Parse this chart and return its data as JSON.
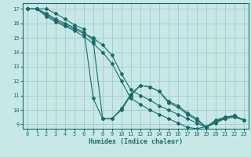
{
  "xlabel": "Humidex (Indice chaleur)",
  "bg_color": "#c8e8e8",
  "line_color": "#1a6b6b",
  "grid_color": "#a8cccc",
  "xlim": [
    -0.5,
    23.5
  ],
  "ylim": [
    8.7,
    17.4
  ],
  "yticks": [
    9,
    10,
    11,
    12,
    13,
    14,
    15,
    16,
    17
  ],
  "xticks": [
    0,
    1,
    2,
    3,
    4,
    5,
    6,
    7,
    8,
    9,
    10,
    11,
    12,
    13,
    14,
    15,
    16,
    17,
    18,
    19,
    20,
    21,
    22,
    23
  ],
  "lines": [
    {
      "x": [
        0,
        1,
        2,
        3,
        4,
        5,
        6,
        7,
        8,
        9,
        10,
        11,
        12,
        13,
        14,
        15,
        16,
        17,
        18,
        19,
        20,
        21,
        22,
        23
      ],
      "y": [
        17,
        17,
        17,
        16.7,
        16.3,
        15.9,
        15.6,
        10.8,
        9.4,
        9.4,
        10.0,
        11.0,
        11.7,
        11.6,
        11.3,
        10.5,
        10.2,
        9.7,
        9.3,
        8.8,
        9.2,
        9.4,
        9.6,
        9.3
      ]
    },
    {
      "x": [
        0,
        1,
        2,
        3,
        4,
        5,
        6,
        7,
        8,
        9,
        10,
        11,
        12,
        13,
        14,
        15,
        16,
        17,
        18,
        19,
        20,
        21,
        22,
        23
      ],
      "y": [
        17,
        17,
        16.7,
        16.3,
        16.0,
        15.7,
        15.4,
        14.8,
        9.4,
        9.4,
        10.1,
        11.1,
        11.7,
        11.6,
        11.3,
        10.6,
        10.3,
        9.8,
        9.4,
        8.8,
        9.3,
        9.5,
        9.6,
        9.3
      ]
    },
    {
      "x": [
        0,
        1,
        2,
        3,
        4,
        5,
        6,
        7,
        8,
        9,
        10,
        11,
        12,
        13,
        14,
        15,
        16,
        17,
        18,
        19,
        20,
        21,
        22,
        23
      ],
      "y": [
        17,
        17,
        16.6,
        16.2,
        15.9,
        15.6,
        15.3,
        15.0,
        14.5,
        13.8,
        12.5,
        11.4,
        11.0,
        10.7,
        10.3,
        10.0,
        9.7,
        9.4,
        9.1,
        8.8,
        9.1,
        9.4,
        9.5,
        9.3
      ]
    },
    {
      "x": [
        0,
        1,
        2,
        3,
        4,
        5,
        6,
        7,
        8,
        9,
        10,
        11,
        12,
        13,
        14,
        15,
        16,
        17,
        18,
        19,
        20,
        21,
        22,
        23
      ],
      "y": [
        17,
        17,
        16.5,
        16.1,
        15.8,
        15.5,
        15.1,
        14.6,
        14.0,
        13.2,
        12.0,
        10.8,
        10.4,
        10.0,
        9.7,
        9.4,
        9.1,
        8.8,
        8.7,
        8.85,
        9.2,
        9.5,
        9.6,
        9.3
      ]
    }
  ]
}
